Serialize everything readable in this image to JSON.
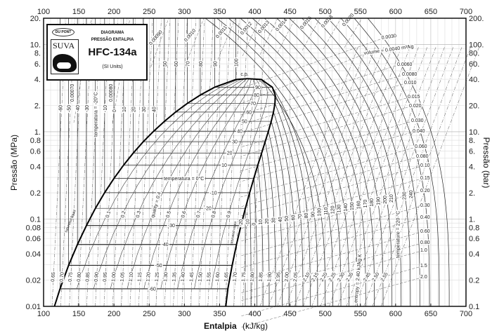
{
  "logo": {
    "brand": "DU PONT",
    "product": "SUVA",
    "line1": "DIAGRAMA",
    "line2": "PRESSÃO ENTALPIA",
    "refrigerant": "HFC-134a",
    "units": "(SI Units)"
  },
  "chart_data": {
    "type": "line",
    "title": "HFC-134a",
    "xlabel": "Entalpia",
    "xlabel_units": "(kJ/kg)",
    "ylabel_left": "Pressão (MPa)",
    "ylabel_right": "Pressão (bar)",
    "xlim": [
      100,
      700
    ],
    "ylim_mpa": [
      0.01,
      20
    ],
    "y_scale": "log",
    "grid": true,
    "x_ticks": [
      "100",
      "150",
      "200",
      "250",
      "300",
      "350",
      "400",
      "450",
      "500",
      "550",
      "600",
      "650",
      "700"
    ],
    "y_ticks_left": [
      "20.",
      "10.",
      "8.",
      "6.",
      "4.",
      "2.",
      "1.",
      "0.8",
      "0.6",
      "0.4",
      "0.2",
      "0.1",
      "0.08",
      "0.06",
      "0.04",
      "0.02",
      "0.01"
    ],
    "y_ticks_left_values": [
      20,
      10,
      8,
      6,
      4,
      2,
      1,
      0.8,
      0.6,
      0.4,
      0.2,
      0.1,
      0.08,
      0.06,
      0.04,
      0.02,
      0.01
    ],
    "y_ticks_right": [
      "200.",
      "100.",
      "80.",
      "60.",
      "40.",
      "20.",
      "10.",
      "8.",
      "6.",
      "4.",
      "2.",
      "1.",
      "0.8",
      "0.6",
      "0.4",
      "0.2",
      "0.1"
    ],
    "saturation": {
      "T_C": [
        -60,
        -50,
        -40,
        -30,
        -20,
        -10,
        0,
        10,
        20,
        30,
        40,
        50,
        60,
        70,
        80,
        90,
        100,
        101.06
      ],
      "P_MPa": [
        0.0159,
        0.0295,
        0.0512,
        0.0844,
        0.1327,
        0.2006,
        0.2928,
        0.4146,
        0.5717,
        0.7702,
        1.0166,
        1.3179,
        1.6818,
        2.1168,
        2.6332,
        3.2442,
        3.9724,
        4.0593
      ],
      "h_liquid": [
        123.4,
        135.5,
        148.1,
        160.9,
        173.6,
        186.7,
        200.0,
        213.6,
        227.5,
        241.7,
        256.4,
        271.6,
        287.5,
        304.3,
        322.5,
        343.0,
        373.1,
        389.6
      ],
      "h_vapor": [
        361.8,
        367.9,
        374.0,
        380.3,
        386.6,
        392.7,
        398.6,
        404.3,
        409.8,
        414.8,
        419.4,
        423.4,
        426.6,
        428.7,
        429.1,
        425.0,
        409.3,
        389.6
      ]
    },
    "critical_point_label": "c.p.",
    "saturated_liquid_label": "saturated liquid",
    "saturated_vapor_label": "saturated vapor",
    "dome_temperature_labels": [
      "-60",
      "-50",
      "-40",
      "-30",
      "-20",
      "-10",
      "temperatura = 0°C",
      "10",
      "20",
      "30",
      "40",
      "50",
      "60",
      "70",
      "80",
      "90"
    ],
    "dome_temperature_values": [
      -60,
      -50,
      -40,
      -30,
      -20,
      -10,
      0,
      10,
      20,
      30,
      40,
      50,
      60,
      70,
      80,
      90
    ],
    "quality_labels": [
      "0.1",
      "0.2",
      "0.3",
      "quality = 0.4",
      "0.5",
      "0.6",
      "0.7",
      "0.8",
      "0.9"
    ],
    "quality_values": [
      0.1,
      0.2,
      0.3,
      0.4,
      0.5,
      0.6,
      0.7,
      0.8,
      0.9
    ],
    "liquid_temperature_labels": [
      "-60",
      "-50",
      "-40",
      "-30",
      "temperatura = -20°C",
      "-10",
      "0",
      "10",
      "20",
      "30",
      "40",
      "50",
      "60",
      "70",
      "80",
      "90",
      "100"
    ],
    "vapor_temperature_labels": [
      "-20",
      "-10",
      "0",
      "10",
      "20",
      "30",
      "40",
      "50",
      "60",
      "70",
      "80",
      "90",
      "100",
      "110",
      "120",
      "130",
      "140",
      "150",
      "160",
      "170",
      "180",
      "190",
      "200",
      "210",
      "temperature = 220 °C",
      "230",
      "240"
    ],
    "vapor_temperature_values": [
      -20,
      -10,
      0,
      10,
      20,
      30,
      40,
      50,
      60,
      70,
      80,
      90,
      100,
      110,
      120,
      130,
      140,
      150,
      160,
      170,
      180,
      190,
      200,
      210,
      220,
      230,
      240
    ],
    "entropy_labels": [
      "0.65",
      "0.70",
      "0.75",
      "0.80",
      "0.85",
      "0.90",
      "0.95",
      "1.00",
      "1.05",
      "1.10",
      "1.15",
      "1.20",
      "1.25",
      "1.30",
      "1.35",
      "1.40",
      "1.45",
      "1.50",
      "1.55",
      "1.60",
      "1.65",
      "1.70",
      "1.75",
      "1.80",
      "1.85",
      "1.90",
      "1.95",
      "2.00",
      "2.05",
      "2.10",
      "2.15",
      "2.20",
      "2.25",
      "2.30",
      "2.35",
      "entropy = 2.40 kJ/kg K",
      "2.45",
      "2.50",
      "2.55"
    ],
    "volume_labels_liquid": [
      "0.00070",
      "0.00080",
      "0.00090",
      "0.0010",
      "0.0011",
      "0.0012",
      "0.0013",
      "0.0014",
      "0.0016",
      "0.0018",
      "0.0020"
    ],
    "volume_labels_vapor": [
      "0.0030",
      "volume = 0.0040 m³/kg",
      "0.0060",
      "0.0080",
      "0.010",
      "0.015",
      "0.020",
      "0.030",
      "0.040",
      "0.060",
      "0.080",
      "0.10",
      "0.15",
      "0.20",
      "0.30",
      "0.40",
      "0.60",
      "0.80",
      "1.0",
      "1.5",
      "2.0"
    ]
  }
}
